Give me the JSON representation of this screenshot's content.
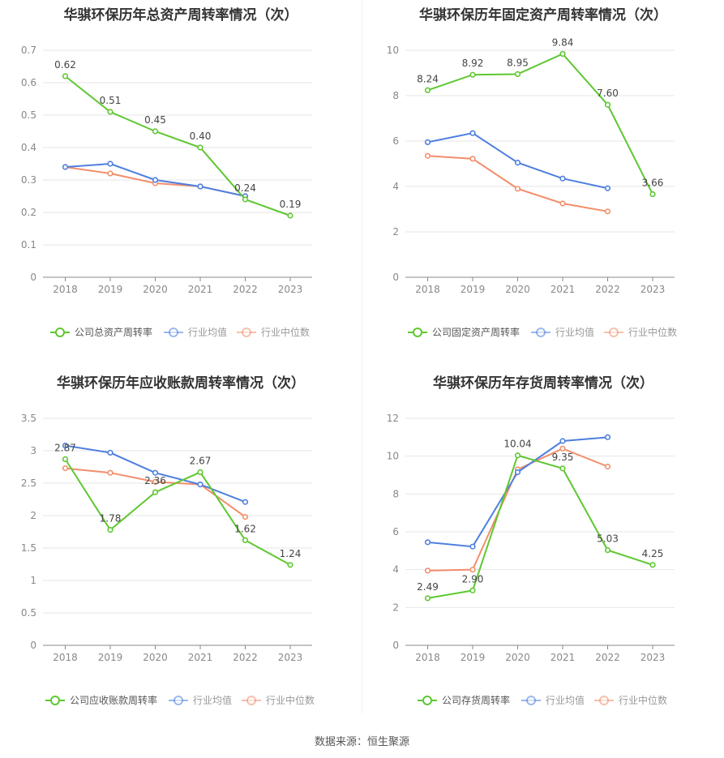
{
  "legend_labels": [
    "",
    "行业均值",
    "行业中位数"
  ],
  "colors": {
    "company": "#5ec731",
    "avg": "#4e7fe0",
    "median": "#f28e6b"
  },
  "source": "数据来源：恒生聚源",
  "chart_data": [
    {
      "type": "line",
      "title": "华骐环保历年总资产周转率情况（次）",
      "x": [
        "2018",
        "2019",
        "2020",
        "2021",
        "2022",
        "2023"
      ],
      "ylim": [
        0,
        0.7
      ],
      "yticks": [
        0,
        0.1,
        0.2,
        0.3,
        0.4,
        0.5,
        0.6,
        0.7
      ],
      "series": [
        {
          "name": "公司总资产周转率",
          "values": [
            0.62,
            0.51,
            0.45,
            0.4,
            0.24,
            0.19
          ],
          "labels": [
            "0.62",
            "0.51",
            "0.45",
            "0.40",
            "0.24",
            "0.19"
          ]
        },
        {
          "name": "行业均值",
          "values": [
            0.34,
            0.35,
            0.3,
            0.28,
            0.25,
            null
          ]
        },
        {
          "name": "行业中位数",
          "values": [
            0.34,
            0.32,
            0.29,
            0.28,
            0.25,
            null
          ]
        }
      ]
    },
    {
      "type": "line",
      "title": "华骐环保历年固定资产周转率情况（次）",
      "x": [
        "2018",
        "2019",
        "2020",
        "2021",
        "2022",
        "2023"
      ],
      "ylim": [
        0,
        10
      ],
      "yticks": [
        0,
        2,
        4,
        6,
        8,
        10
      ],
      "series": [
        {
          "name": "公司固定资产周转率",
          "values": [
            8.24,
            8.92,
            8.95,
            9.84,
            7.6,
            3.66
          ],
          "labels": [
            "8.24",
            "8.92",
            "8.95",
            "9.84",
            "7.60",
            "3.66"
          ]
        },
        {
          "name": "行业均值",
          "values": [
            5.95,
            6.35,
            5.05,
            4.35,
            3.92,
            null
          ]
        },
        {
          "name": "行业中位数",
          "values": [
            5.35,
            5.22,
            3.9,
            3.25,
            2.9,
            null
          ]
        }
      ]
    },
    {
      "type": "line",
      "title": "华骐环保历年应收账款周转率情况（次）",
      "x": [
        "2018",
        "2019",
        "2020",
        "2021",
        "2022",
        "2023"
      ],
      "ylim": [
        0,
        3.5
      ],
      "yticks": [
        0,
        0.5,
        1,
        1.5,
        2,
        2.5,
        3,
        3.5
      ],
      "series": [
        {
          "name": "公司应收账款周转率",
          "values": [
            2.87,
            1.78,
            2.36,
            2.67,
            1.62,
            1.24
          ],
          "labels": [
            "2.87",
            "1.78",
            "2.36",
            "2.67",
            "1.62",
            "1.24"
          ]
        },
        {
          "name": "行业均值",
          "values": [
            3.08,
            2.97,
            2.66,
            2.48,
            2.21,
            null
          ]
        },
        {
          "name": "行业中位数",
          "values": [
            2.73,
            2.66,
            2.52,
            2.48,
            1.98,
            null
          ]
        }
      ]
    },
    {
      "type": "line",
      "title": "华骐环保历年存货周转率情况（次）",
      "x": [
        "2018",
        "2019",
        "2020",
        "2021",
        "2022",
        "2023"
      ],
      "ylim": [
        0,
        12
      ],
      "yticks": [
        0,
        2,
        4,
        6,
        8,
        10,
        12
      ],
      "series": [
        {
          "name": "公司存货周转率",
          "values": [
            2.49,
            2.9,
            10.04,
            9.35,
            5.03,
            4.25
          ],
          "labels": [
            "2.49",
            "2.90",
            "10.04",
            "9.35",
            "5.03",
            "4.25"
          ]
        },
        {
          "name": "行业均值",
          "values": [
            5.45,
            5.22,
            9.15,
            10.8,
            11.0,
            null
          ]
        },
        {
          "name": "行业中位数",
          "values": [
            3.95,
            4.0,
            9.3,
            10.4,
            9.45,
            null
          ]
        }
      ]
    }
  ]
}
